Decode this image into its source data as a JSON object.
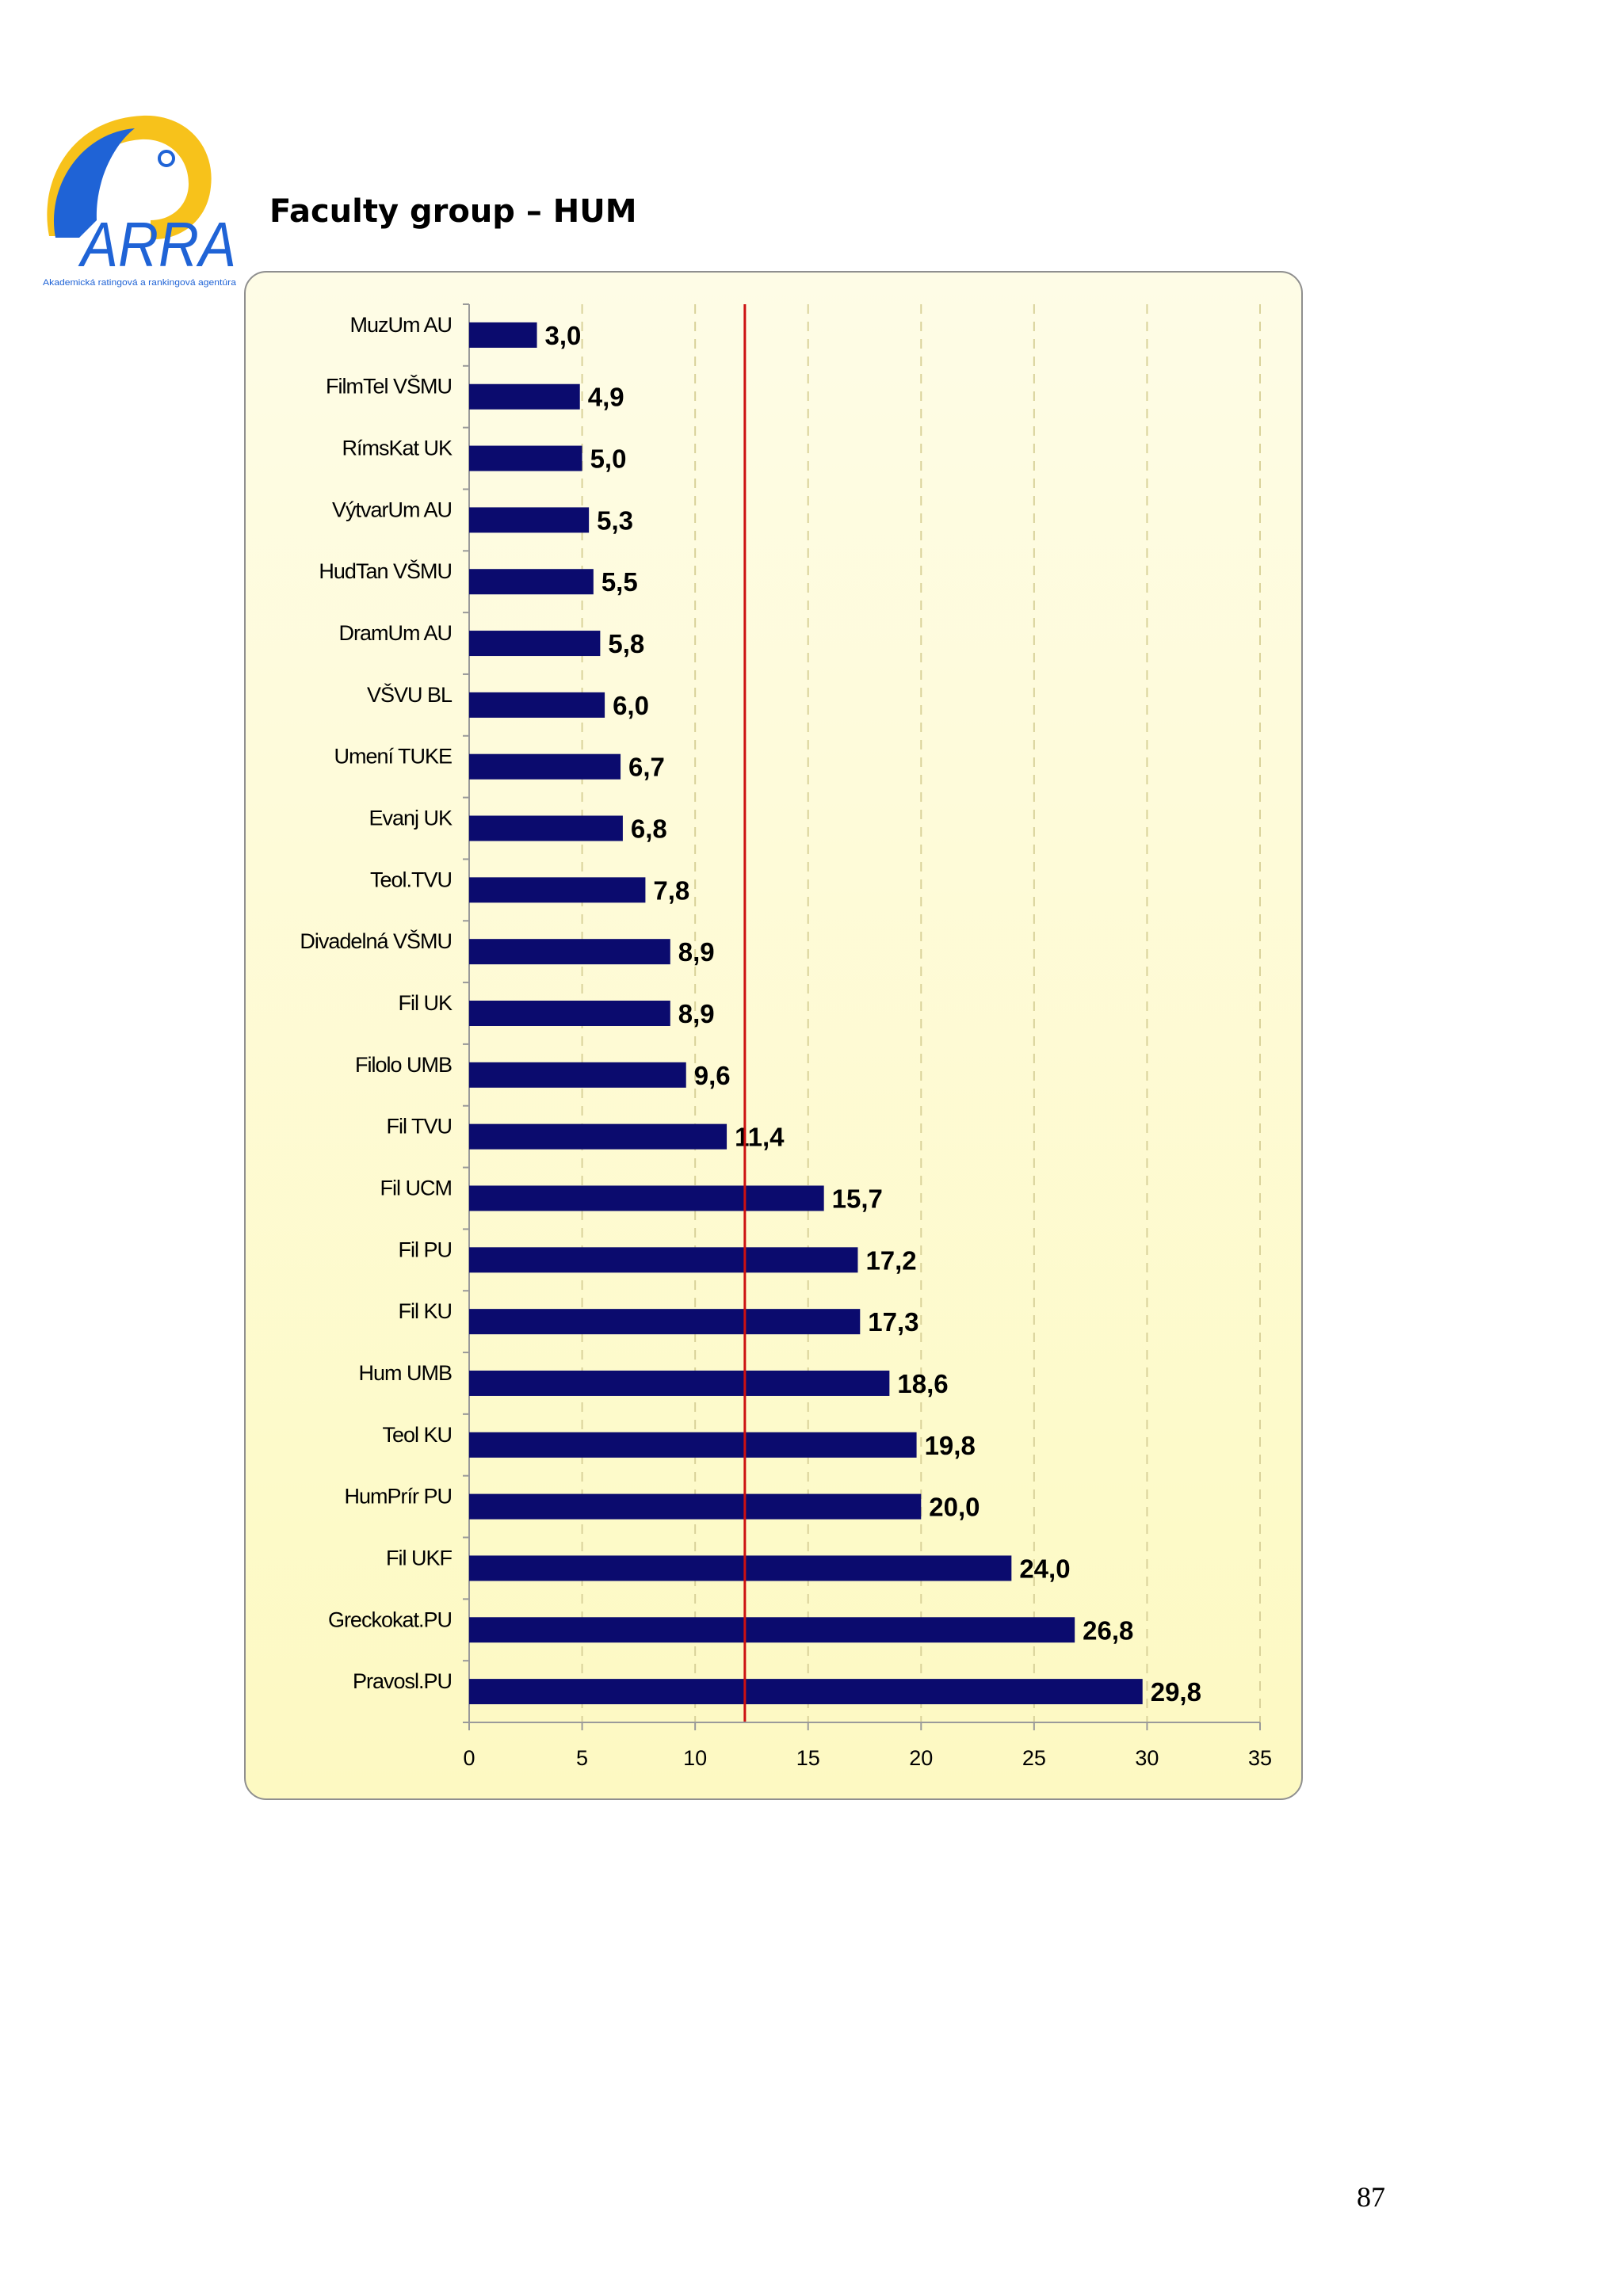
{
  "header": {
    "logo_text": "ARRA",
    "logo_subtitle": "Akademická ratingová a rankingová agentúra",
    "title": "Faculty group – HUM"
  },
  "colors": {
    "bar": "#0b0b6e",
    "reference_line": "#cc1111",
    "logo_blue": "#1f63d6",
    "logo_yellow": "#f7c21b"
  },
  "chart_data": {
    "type": "bar",
    "orientation": "horizontal",
    "title": "",
    "xlabel": "",
    "ylabel": "",
    "xlim": [
      0,
      35
    ],
    "xticks": [
      0,
      5,
      10,
      15,
      20,
      25,
      30,
      35
    ],
    "grid": "vertical dashed",
    "reference_line": 12.2,
    "categories": [
      "MuzUm AU",
      "FilmTel VŠMU",
      "RímsKat UK",
      "VýtvarUm AU",
      "HudTan VŠMU",
      "DramUm AU",
      "VŠVU BL",
      "Umení TUKE",
      "Evanj UK",
      "Teol.TVU",
      "Divadelná VŠMU",
      "Fil UK",
      "Filolo UMB",
      "Fil TVU",
      "Fil UCM",
      "Fil PU",
      "Fil KU",
      "Hum UMB",
      "Teol KU",
      "HumPrír PU",
      "Fil UKF",
      "Greckokat.PU",
      "Pravosl.PU"
    ],
    "values": [
      3.0,
      4.9,
      5.0,
      5.3,
      5.5,
      5.8,
      6.0,
      6.7,
      6.8,
      7.8,
      8.9,
      8.9,
      9.6,
      11.4,
      15.7,
      17.2,
      17.3,
      18.6,
      19.8,
      20.0,
      24.0,
      26.8,
      29.8
    ],
    "value_labels": [
      "3,0",
      "4,9",
      "5,0",
      "5,3",
      "5,5",
      "5,8",
      "6,0",
      "6,7",
      "6,8",
      "7,8",
      "8,9",
      "8,9",
      "9,6",
      "11,4",
      "15,7",
      "17,2",
      "17,3",
      "18,6",
      "19,8",
      "20,0",
      "24,0",
      "26,8",
      "29,8"
    ]
  },
  "footer": {
    "page_number": "87"
  }
}
